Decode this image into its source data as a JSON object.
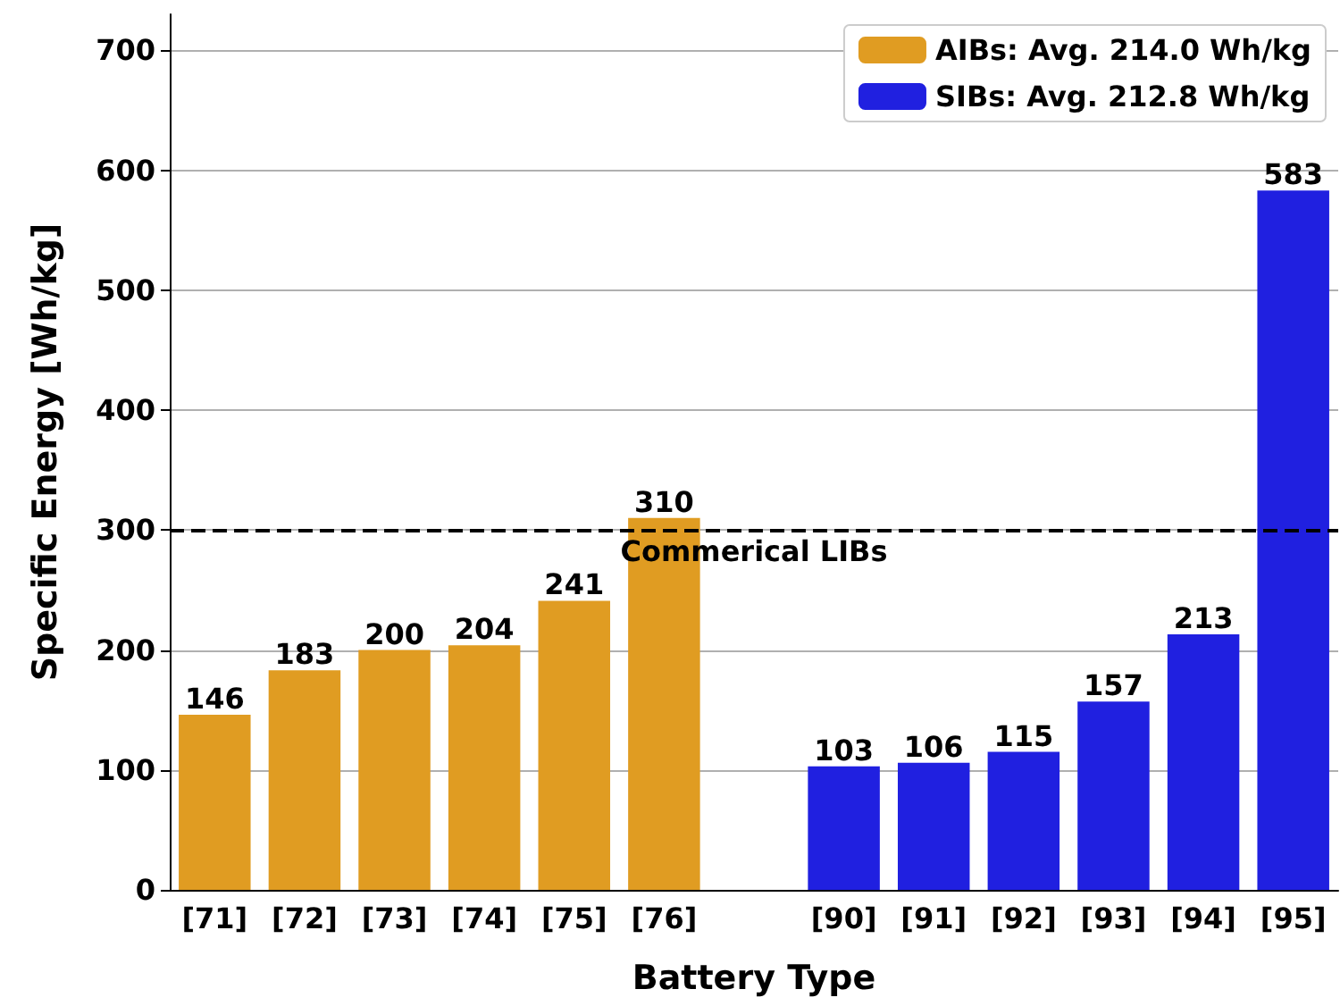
{
  "chart_data": {
    "type": "bar",
    "xlabel": "Battery Type",
    "ylabel": "Specific Energy [Wh/kg]",
    "categories": [
      "[71]",
      "[72]",
      "[73]",
      "[74]",
      "[75]",
      "[76]",
      null,
      "[90]",
      "[91]",
      "[92]",
      "[93]",
      "[94]",
      "[95]"
    ],
    "series": [
      {
        "name": "AIBs: Avg. 214.0 Wh/kg",
        "color": "#e09c22",
        "values": [
          146,
          183,
          200,
          204,
          241,
          310,
          null,
          null,
          null,
          null,
          null,
          null,
          null
        ]
      },
      {
        "name": "SIBs: Avg. 212.8 Wh/kg",
        "color": "#2020e0",
        "values": [
          null,
          null,
          null,
          null,
          null,
          null,
          null,
          103,
          106,
          115,
          157,
          213,
          583
        ]
      }
    ],
    "ylim": [
      0,
      730
    ],
    "yticks": [
      0,
      100,
      200,
      300,
      400,
      500,
      600,
      700
    ],
    "ref_lines": [
      {
        "axis": "y",
        "value": 300,
        "label": "Commerical LIBs",
        "color": "#000000",
        "line_style": "dashed"
      }
    ],
    "data_labels": true,
    "grid": "y",
    "legend": "top right"
  }
}
